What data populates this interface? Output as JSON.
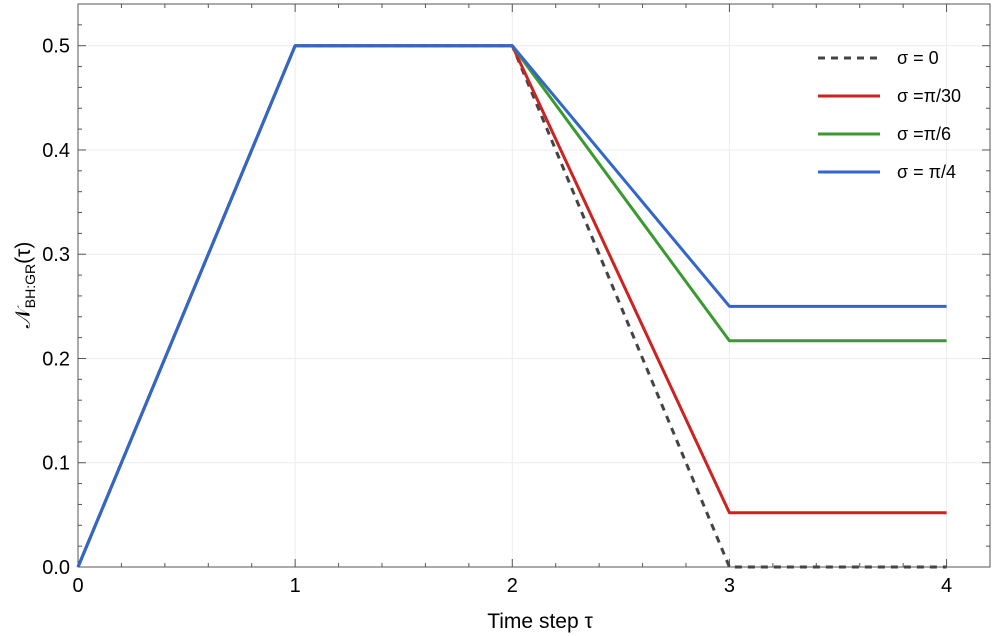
{
  "chart_data": {
    "type": "line",
    "xlabel": "Time step τ",
    "ylabel": "𝒩BH:GR(τ)",
    "ylabel_parts": {
      "main": "𝒩",
      "sub": "BH:GR",
      "arg": "(τ)"
    },
    "xlim": [
      0,
      4.2
    ],
    "ylim": [
      0,
      0.54
    ],
    "xticks": [
      0,
      1,
      2,
      3,
      4
    ],
    "xtick_labels": [
      "0",
      "1",
      "2",
      "3",
      "4"
    ],
    "yticks": [
      0.0,
      0.1,
      0.2,
      0.3,
      0.4,
      0.5
    ],
    "ytick_labels": [
      "0.0",
      "0.1",
      "0.2",
      "0.3",
      "0.4",
      "0.5"
    ],
    "grid": true,
    "legend_position": "top-right",
    "x": [
      0,
      1,
      2,
      3,
      4
    ],
    "series": [
      {
        "name": "σ = 0",
        "values": [
          0,
          0.5,
          0.5,
          0.0,
          0.0
        ],
        "color": "#444444",
        "dashed": true
      },
      {
        "name": "σ =π/30",
        "values": [
          0,
          0.5,
          0.5,
          0.052,
          0.052
        ],
        "color": "#cc2222",
        "dashed": false
      },
      {
        "name": "σ =π/6",
        "values": [
          0,
          0.5,
          0.5,
          0.217,
          0.217
        ],
        "color": "#3a9a30",
        "dashed": false
      },
      {
        "name": "σ = π/4",
        "values": [
          0,
          0.5,
          0.5,
          0.25,
          0.25
        ],
        "color": "#3366cc",
        "dashed": false
      }
    ]
  }
}
